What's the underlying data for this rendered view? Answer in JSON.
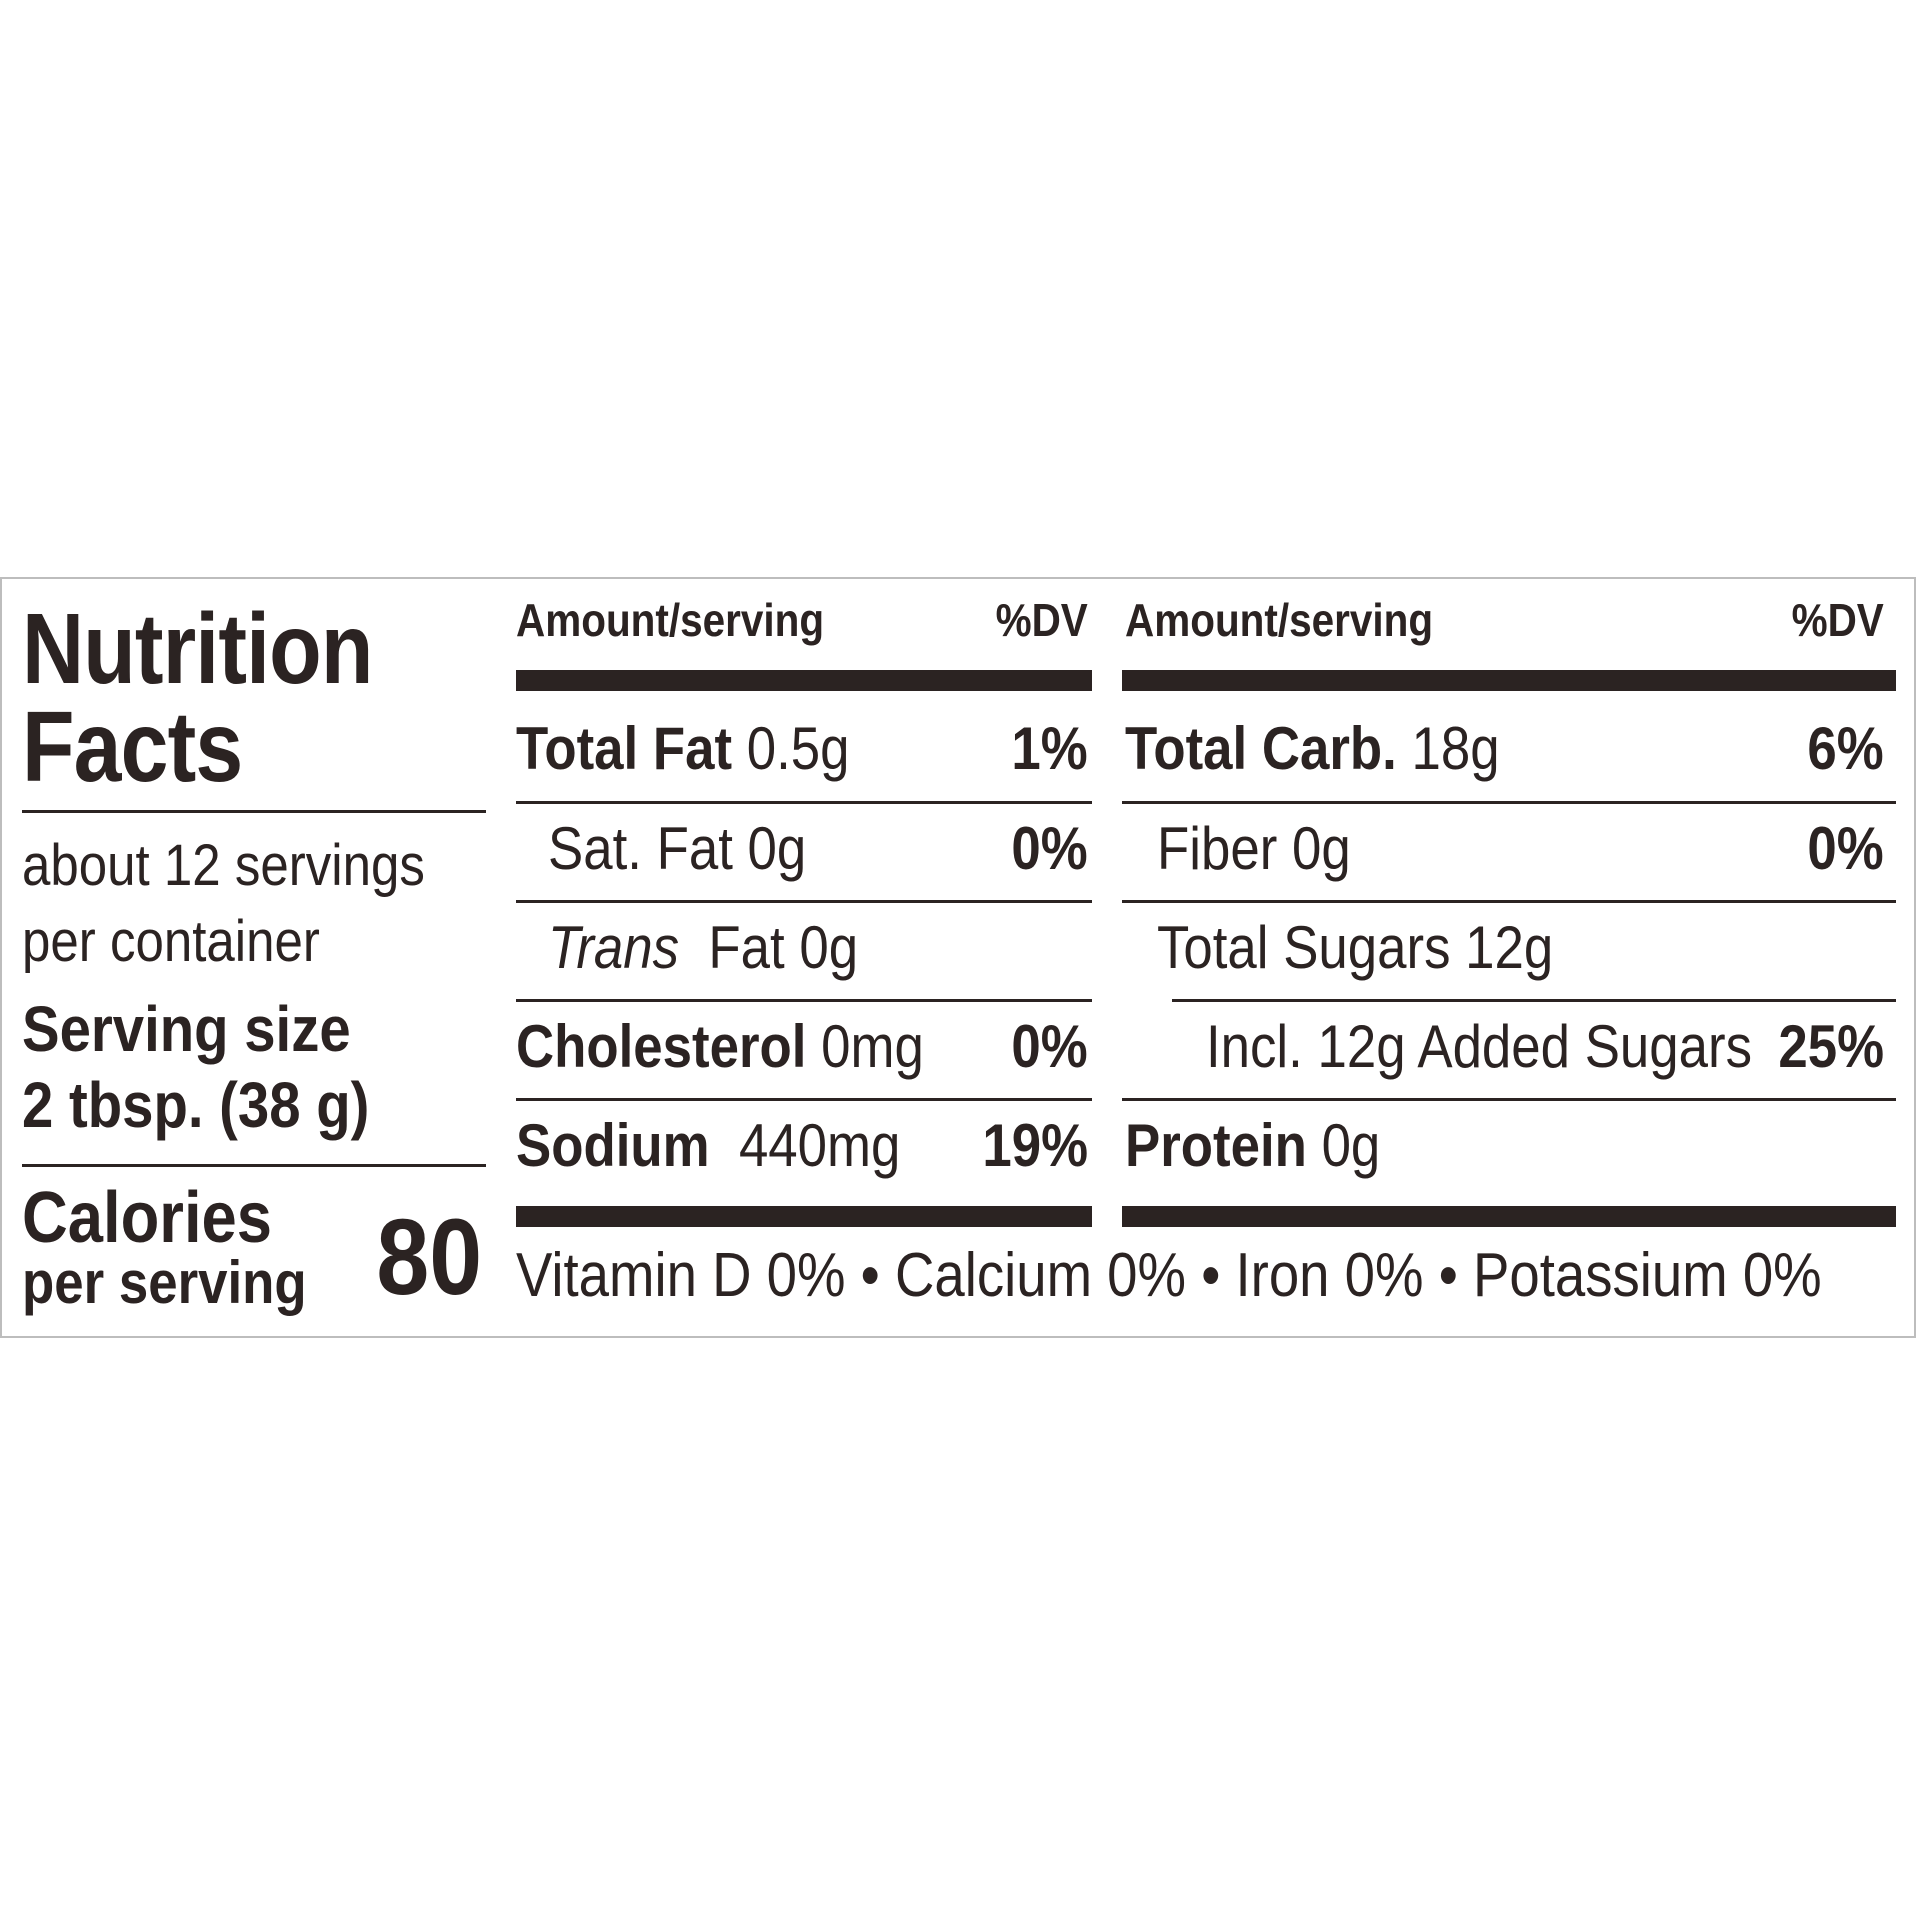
{
  "title_line1": "Nutrition",
  "title_line2": "Facts",
  "servings": {
    "line1": "about 12 servings",
    "line2": "per container"
  },
  "serving_size": {
    "label": "Serving size",
    "value": "2 tbsp. (38 g)"
  },
  "calories": {
    "label": "Calories",
    "sub": "per serving",
    "value": "80"
  },
  "headers": {
    "amount": "Amount/serving",
    "dv": "%DV"
  },
  "left_rows": [
    {
      "name": "Total Fat",
      "amount": "0.5g",
      "dv": "1%"
    },
    {
      "name": "Sat. Fat",
      "amount": "0g",
      "dv": "0%"
    },
    {
      "name": "Trans",
      "amount": "Fat 0g",
      "dv": ""
    },
    {
      "name": "Cholesterol",
      "amount": "0mg",
      "dv": "0%"
    },
    {
      "name": "Sodium",
      "amount": "440mg",
      "dv": "19%"
    }
  ],
  "right_rows": [
    {
      "name": "Total Carb.",
      "amount": "18g",
      "dv": "6%"
    },
    {
      "name": "Fiber",
      "amount": "0g",
      "dv": "0%"
    },
    {
      "name": "Total Sugars",
      "amount": "12g",
      "dv": ""
    },
    {
      "name": "Incl. 12g Added Sugars",
      "amount": "",
      "dv": "25%"
    },
    {
      "name": "Protein",
      "amount": "0g",
      "dv": ""
    }
  ],
  "footer": {
    "vitamin_d": "Vitamin D 0%",
    "calcium": "Calcium 0%",
    "iron": "Iron 0%",
    "potassium": "Potassium 0%",
    "separator": "•"
  }
}
